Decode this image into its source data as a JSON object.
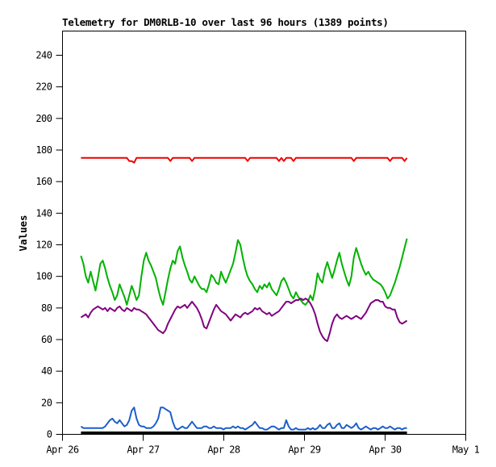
{
  "chart_data": {
    "type": "line",
    "title": "Telemetry for DM0RLB-10 over last 96 hours (1389 points)",
    "xlabel": "",
    "ylabel": "Values",
    "ylim": [
      0,
      255
    ],
    "y_ticks": [
      0,
      20,
      40,
      60,
      80,
      100,
      120,
      140,
      160,
      180,
      200,
      220,
      240
    ],
    "x_tick_labels": [
      "Apr 26",
      "Apr 27",
      "Apr 28",
      "Apr 29",
      "Apr 30",
      "May 1"
    ],
    "x_axis_span_hours": 120,
    "grid": false,
    "legend_position": "none",
    "points_count": 1389,
    "series_time_range_hours": [
      5.5,
      102.5
    ],
    "series": [
      {
        "name": "series-red",
        "color": "#ee0000",
        "width": 2,
        "values": [
          175,
          175,
          175,
          175,
          175,
          175,
          175,
          175,
          175,
          175,
          175,
          175,
          175,
          175,
          175,
          175,
          175,
          175,
          175,
          175,
          173,
          173,
          172,
          175,
          175,
          175,
          175,
          175,
          175,
          175,
          175,
          175,
          175,
          175,
          175,
          175,
          175,
          173,
          175,
          175,
          175,
          175,
          175,
          175,
          175,
          175,
          173,
          175,
          175,
          175,
          175,
          175,
          175,
          175,
          175,
          175,
          175,
          175,
          175,
          175,
          175,
          175,
          175,
          175,
          175,
          175,
          175,
          175,
          175,
          173,
          175,
          175,
          175,
          175,
          175,
          175,
          175,
          175,
          175,
          175,
          175,
          175,
          173,
          175,
          173,
          175,
          175,
          175,
          173,
          175,
          175,
          175,
          175,
          175,
          175,
          175,
          175,
          175,
          175,
          175,
          175,
          175,
          175,
          175,
          175,
          175,
          175,
          175,
          175,
          175,
          175,
          175,
          175,
          173,
          175,
          175,
          175,
          175,
          175,
          175,
          175,
          175,
          175,
          175,
          175,
          175,
          175,
          175,
          173,
          175,
          175,
          175,
          175,
          175,
          173,
          175
        ]
      },
      {
        "name": "series-green",
        "color": "#00b200",
        "width": 2,
        "values": [
          113,
          108,
          100,
          96,
          103,
          97,
          91,
          99,
          108,
          110,
          105,
          99,
          94,
          90,
          85,
          88,
          95,
          91,
          87,
          82,
          88,
          94,
          90,
          85,
          88,
          100,
          110,
          115,
          110,
          107,
          103,
          99,
          92,
          86,
          82,
          90,
          98,
          105,
          110,
          108,
          116,
          119,
          112,
          107,
          103,
          98,
          96,
          100,
          97,
          94,
          92,
          92,
          90,
          95,
          101,
          99,
          96,
          95,
          103,
          99,
          96,
          100,
          104,
          108,
          115,
          123,
          120,
          112,
          105,
          100,
          97,
          95,
          92,
          90,
          94,
          92,
          95,
          93,
          96,
          92,
          90,
          88,
          92,
          97,
          99,
          96,
          92,
          88,
          86,
          90,
          87,
          85,
          83,
          82,
          84,
          88,
          85,
          92,
          102,
          98,
          96,
          104,
          109,
          104,
          99,
          104,
          110,
          115,
          108,
          103,
          98,
          94,
          100,
          112,
          118,
          113,
          108,
          104,
          101,
          103,
          100,
          98,
          97,
          96,
          95,
          93,
          90,
          86,
          88,
          92,
          96,
          101,
          106,
          112,
          118,
          124
        ]
      },
      {
        "name": "series-purple",
        "color": "#800080",
        "width": 2,
        "values": [
          74,
          75,
          76,
          74,
          77,
          79,
          80,
          81,
          80,
          79,
          80,
          78,
          80,
          79,
          78,
          80,
          81,
          79,
          78,
          80,
          79,
          78,
          80,
          79,
          79,
          78,
          77,
          76,
          74,
          72,
          70,
          68,
          66,
          65,
          64,
          66,
          70,
          73,
          76,
          79,
          81,
          80,
          81,
          82,
          80,
          82,
          84,
          82,
          80,
          77,
          73,
          68,
          67,
          71,
          75,
          79,
          82,
          80,
          78,
          77,
          76,
          74,
          72,
          74,
          76,
          75,
          74,
          76,
          77,
          76,
          77,
          78,
          80,
          79,
          80,
          78,
          77,
          76,
          77,
          75,
          76,
          77,
          78,
          80,
          82,
          84,
          84,
          83,
          84,
          85,
          85,
          86,
          85,
          86,
          85,
          83,
          80,
          76,
          70,
          65,
          62,
          60,
          59,
          64,
          70,
          74,
          76,
          74,
          73,
          74,
          75,
          74,
          73,
          74,
          75,
          74,
          73,
          75,
          77,
          80,
          83,
          84,
          85,
          85,
          84,
          84,
          81,
          80,
          80,
          79,
          79,
          74,
          71,
          70,
          71,
          72
        ]
      },
      {
        "name": "series-blue",
        "color": "#1c5fc8",
        "width": 2,
        "values": [
          5,
          4,
          4,
          4,
          4,
          4,
          4,
          4,
          4,
          4,
          5,
          7,
          9,
          10,
          8,
          7,
          9,
          7,
          5,
          6,
          9,
          15,
          17,
          10,
          6,
          5,
          5,
          4,
          4,
          4,
          5,
          7,
          10,
          17,
          17,
          16,
          15,
          14,
          8,
          4,
          3,
          4,
          5,
          4,
          4,
          6,
          8,
          6,
          4,
          4,
          4,
          5,
          5,
          4,
          4,
          5,
          4,
          4,
          4,
          3,
          4,
          4,
          4,
          5,
          4,
          5,
          4,
          4,
          3,
          4,
          5,
          6,
          8,
          6,
          4,
          4,
          3,
          3,
          4,
          5,
          5,
          4,
          3,
          4,
          4,
          9,
          5,
          3,
          3,
          4,
          3,
          3,
          3,
          3,
          4,
          3,
          4,
          3,
          4,
          6,
          4,
          4,
          6,
          7,
          4,
          4,
          6,
          7,
          4,
          4,
          6,
          5,
          4,
          5,
          7,
          4,
          3,
          4,
          5,
          4,
          3,
          4,
          4,
          3,
          4,
          5,
          4,
          4,
          5,
          4,
          3,
          4,
          4,
          3,
          4,
          4
        ]
      },
      {
        "name": "series-black",
        "color": "#000000",
        "width": 3,
        "values": [
          1,
          1,
          1,
          1,
          1,
          1,
          1,
          1,
          1,
          1,
          1,
          1,
          1,
          1,
          1,
          1,
          1,
          1,
          1,
          1,
          1,
          1,
          1,
          1,
          1,
          1,
          1,
          1,
          1,
          1,
          1,
          1,
          1,
          1,
          1,
          1,
          1,
          1,
          1,
          1,
          1,
          1,
          1,
          1,
          1,
          1,
          1,
          1,
          1,
          1,
          1,
          1,
          1,
          1,
          1,
          1,
          1,
          1,
          1,
          1,
          1,
          1,
          1,
          1,
          1,
          1,
          1,
          1,
          1,
          1,
          1,
          1,
          1,
          1,
          1,
          1,
          1,
          1,
          1,
          1,
          1,
          1,
          1,
          1,
          1,
          1,
          1,
          1,
          1,
          1,
          1,
          1,
          1,
          1,
          1,
          1,
          1,
          1,
          1,
          1,
          1,
          1,
          1,
          1,
          1,
          1,
          1,
          1,
          1,
          1,
          1,
          1,
          1,
          1,
          1,
          1,
          1,
          1,
          1,
          1,
          1,
          1,
          1,
          1,
          1,
          1,
          1,
          1,
          1,
          1,
          1,
          1,
          1,
          1,
          1,
          1
        ]
      }
    ]
  }
}
